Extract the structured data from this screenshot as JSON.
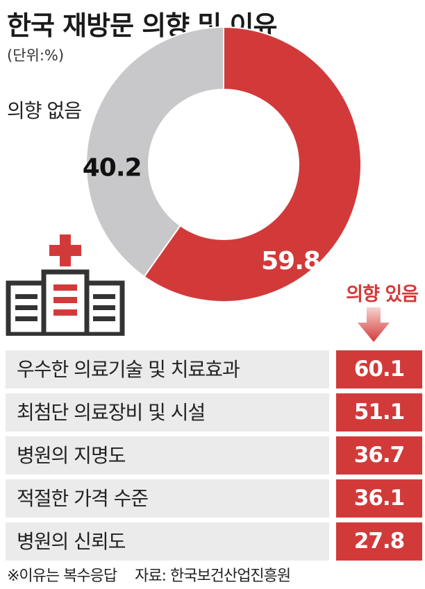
{
  "title": "한국 재방문 의향 및 이유",
  "unit": "(단위:%)",
  "icons": {
    "hospital": "hospital-building-icon",
    "arrow": "arrow-down-icon"
  },
  "colors": {
    "accent": "#d23a3a",
    "neutral": "#c8c8ca"
  },
  "chart_data": [
    {
      "type": "pie",
      "variant": "donut",
      "categories": [
        "의향 있음",
        "의향 없음"
      ],
      "values": [
        59.8,
        40.2
      ],
      "value_labels": [
        "59.8",
        "40.2"
      ],
      "colors": [
        "#d23a3a",
        "#c8c8ca"
      ]
    },
    {
      "type": "table",
      "categories": [
        "우수한 의료기술 및 치료효과",
        "최첨단 의료장비 및 시설",
        "병원의 지명도",
        "적절한 가격 수준",
        "병원의 신뢰도"
      ],
      "values": [
        60.1,
        51.1,
        36.7,
        36.1,
        27.8
      ],
      "value_labels": [
        "60.1",
        "51.1",
        "36.7",
        "36.1",
        "27.8"
      ]
    }
  ],
  "footnote": "※이유는 복수응답",
  "source": "자료: 한국보건산업진흥원"
}
